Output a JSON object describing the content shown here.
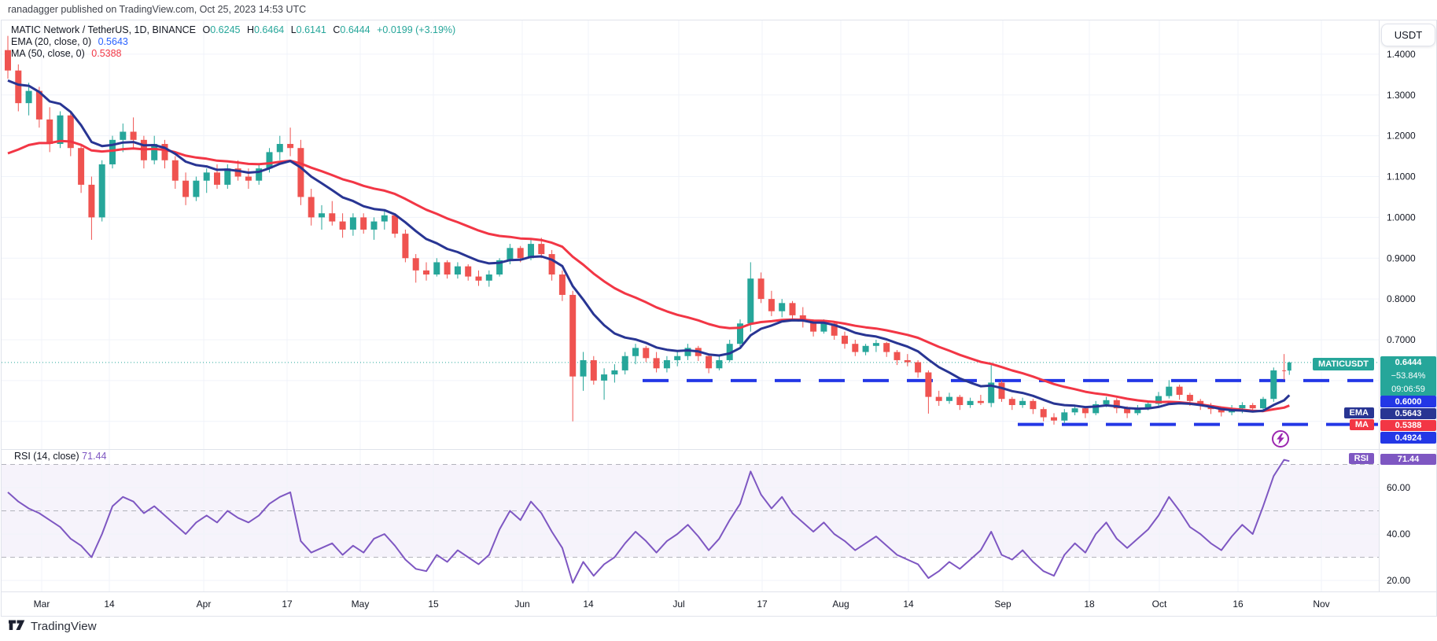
{
  "header": {
    "published": "ranadagger published on TradingView.com, Oct 25, 2023 14:53 UTC"
  },
  "footer": {
    "brand": "TradingView"
  },
  "price_axis": {
    "currency_button": "USDT"
  },
  "legend": {
    "title": "MATIC Network / TetherUS, 1D, BINANCE",
    "o_label": "O",
    "o_value": "0.6245",
    "h_label": "H",
    "h_value": "0.6464",
    "l_label": "L",
    "l_value": "0.6141",
    "c_label": "C",
    "c_value": "0.6444",
    "change": "+0.0199 (+3.19%)",
    "ema_title": "EMA (20, close, 0)",
    "ema_value": "0.5643",
    "ma_title": "MA (50, close, 0)",
    "ma_value": "0.5388"
  },
  "rsi_legend": {
    "title": "RSI (14, close)",
    "value": "71.44"
  },
  "tags": {
    "symbol": "MATICUSDT",
    "price": "0.6444",
    "change": "−53.84%",
    "countdown": "09:06:59",
    "upper_level": "0.6000",
    "ema_name": "EMA",
    "ema_value": "0.5643",
    "ma_name": "MA",
    "ma_value": "0.5388",
    "lower_level": "0.4924",
    "rsi_name": "RSI",
    "rsi_value": "71.44"
  },
  "colors": {
    "up": "#26a69a",
    "down": "#ef5350",
    "ema_line": "#283593",
    "ma_line": "#f23645",
    "level_blue": "#2337e6",
    "rsi_line": "#7e57c2",
    "grid": "#f0f3fa",
    "axis_border": "#e0e3eb",
    "axis_text": "#131722",
    "rsi_dash": "#787b86",
    "flash": "#9c27b0"
  },
  "chart_data": {
    "type": "candlestick",
    "symbol": "MATIC Network / TetherUS",
    "ticker": "MATICUSDT",
    "interval": "1D",
    "exchange": "BINANCE",
    "start_date": "2023-02-22",
    "candle_step_days": 2,
    "last_candle_date": "2023-10-25",
    "ohlc_today": {
      "o": 0.6245,
      "h": 0.6464,
      "l": 0.6141,
      "c": 0.6444,
      "change_abs": 0.0199,
      "change_pct": 3.19
    },
    "levels": {
      "current_price_line": 0.6444,
      "resistance": 0.6,
      "support": 0.4924
    },
    "price_ticks": [
      [
        1.4,
        "1.4000"
      ],
      [
        1.3,
        "1.3000"
      ],
      [
        1.2,
        "1.2000"
      ],
      [
        1.1,
        "1.1000"
      ],
      [
        1.0,
        "1.0000"
      ],
      [
        0.9,
        "0.9000"
      ],
      [
        0.8,
        "0.8000"
      ],
      [
        0.7,
        "0.7000"
      ]
    ],
    "price_gridlines": [
      1.4,
      1.3,
      1.2,
      1.1,
      1.0,
      0.9,
      0.8,
      0.7,
      0.6,
      0.5
    ],
    "rsi_ticks": [
      [
        60,
        "60.00"
      ],
      [
        40,
        "40.00"
      ],
      [
        20,
        "20.00"
      ]
    ],
    "rsi_levels": [
      70,
      50,
      30
    ],
    "rsi_band": [
      30,
      70
    ],
    "time_ticks": [
      [
        "Mar",
        51
      ],
      [
        "14",
        137
      ],
      [
        "Apr",
        257
      ],
      [
        "17",
        363
      ],
      [
        "May",
        456
      ],
      [
        "15",
        549
      ],
      [
        "Jun",
        662
      ],
      [
        "14",
        746
      ],
      [
        "Jul",
        861
      ],
      [
        "17",
        967
      ],
      [
        "Aug",
        1067
      ],
      [
        "14",
        1153
      ],
      [
        "Sep",
        1273
      ],
      [
        "18",
        1383
      ],
      [
        "Oct",
        1472
      ],
      [
        "16",
        1572
      ],
      [
        "Nov",
        1678
      ]
    ],
    "indicators": {
      "ema": {
        "label": "EMA (20, close, 0)",
        "period": 20,
        "last": 0.5643,
        "seed": 1.33
      },
      "ma": {
        "label": "MA (50, close, 0)",
        "period": 50,
        "last": 0.5388,
        "seed": 1.14
      },
      "rsi": {
        "label": "RSI (14, close)",
        "period": 14,
        "last": 71.44
      }
    },
    "candles": [
      [
        1.41,
        1.445,
        1.34,
        1.36
      ],
      [
        1.36,
        1.375,
        1.26,
        1.28
      ],
      [
        1.28,
        1.33,
        1.25,
        1.31
      ],
      [
        1.31,
        1.32,
        1.22,
        1.24
      ],
      [
        1.24,
        1.27,
        1.16,
        1.18
      ],
      [
        1.18,
        1.26,
        1.17,
        1.25
      ],
      [
        1.25,
        1.26,
        1.15,
        1.17
      ],
      [
        1.17,
        1.18,
        1.06,
        1.08
      ],
      [
        1.08,
        1.1,
        0.945,
        1.0
      ],
      [
        1.0,
        1.14,
        0.99,
        1.13
      ],
      [
        1.13,
        1.2,
        1.12,
        1.19
      ],
      [
        1.19,
        1.23,
        1.16,
        1.21
      ],
      [
        1.21,
        1.245,
        1.17,
        1.19
      ],
      [
        1.19,
        1.2,
        1.12,
        1.14
      ],
      [
        1.14,
        1.2,
        1.13,
        1.18
      ],
      [
        1.18,
        1.19,
        1.12,
        1.14
      ],
      [
        1.14,
        1.15,
        1.07,
        1.09
      ],
      [
        1.09,
        1.11,
        1.03,
        1.05
      ],
      [
        1.05,
        1.1,
        1.04,
        1.09
      ],
      [
        1.09,
        1.12,
        1.06,
        1.11
      ],
      [
        1.11,
        1.13,
        1.07,
        1.08
      ],
      [
        1.08,
        1.13,
        1.07,
        1.12
      ],
      [
        1.12,
        1.14,
        1.09,
        1.1
      ],
      [
        1.1,
        1.12,
        1.07,
        1.09
      ],
      [
        1.09,
        1.13,
        1.08,
        1.12
      ],
      [
        1.12,
        1.17,
        1.11,
        1.16
      ],
      [
        1.16,
        1.2,
        1.14,
        1.18
      ],
      [
        1.18,
        1.22,
        1.15,
        1.17
      ],
      [
        1.17,
        1.19,
        1.03,
        1.05
      ],
      [
        1.05,
        1.07,
        0.98,
        1.0
      ],
      [
        1.0,
        1.03,
        0.97,
        1.01
      ],
      [
        1.01,
        1.04,
        0.98,
        0.99
      ],
      [
        0.99,
        1.01,
        0.95,
        0.97
      ],
      [
        0.97,
        1.01,
        0.955,
        1.0
      ],
      [
        1.0,
        1.01,
        0.96,
        0.97
      ],
      [
        0.97,
        1.0,
        0.945,
        0.99
      ],
      [
        0.99,
        1.02,
        0.97,
        1.005
      ],
      [
        1.005,
        1.01,
        0.95,
        0.96
      ],
      [
        0.96,
        0.97,
        0.89,
        0.9
      ],
      [
        0.9,
        0.91,
        0.84,
        0.87
      ],
      [
        0.87,
        0.89,
        0.845,
        0.86
      ],
      [
        0.86,
        0.9,
        0.855,
        0.89
      ],
      [
        0.89,
        0.895,
        0.85,
        0.86
      ],
      [
        0.86,
        0.89,
        0.85,
        0.88
      ],
      [
        0.88,
        0.885,
        0.845,
        0.855
      ],
      [
        0.855,
        0.87,
        0.832,
        0.845
      ],
      [
        0.845,
        0.87,
        0.83,
        0.86
      ],
      [
        0.86,
        0.9,
        0.855,
        0.895
      ],
      [
        0.895,
        0.935,
        0.885,
        0.925
      ],
      [
        0.925,
        0.93,
        0.89,
        0.9
      ],
      [
        0.9,
        0.945,
        0.895,
        0.935
      ],
      [
        0.935,
        0.95,
        0.9,
        0.91
      ],
      [
        0.91,
        0.92,
        0.845,
        0.86
      ],
      [
        0.86,
        0.87,
        0.795,
        0.81
      ],
      [
        0.81,
        0.82,
        0.5,
        0.61
      ],
      [
        0.61,
        0.67,
        0.575,
        0.65
      ],
      [
        0.65,
        0.66,
        0.59,
        0.6
      ],
      [
        0.6,
        0.63,
        0.553,
        0.615
      ],
      [
        0.615,
        0.64,
        0.595,
        0.625
      ],
      [
        0.625,
        0.67,
        0.615,
        0.66
      ],
      [
        0.66,
        0.69,
        0.64,
        0.68
      ],
      [
        0.68,
        0.685,
        0.645,
        0.655
      ],
      [
        0.655,
        0.67,
        0.62,
        0.63
      ],
      [
        0.63,
        0.66,
        0.62,
        0.65
      ],
      [
        0.65,
        0.67,
        0.635,
        0.66
      ],
      [
        0.66,
        0.69,
        0.65,
        0.68
      ],
      [
        0.68,
        0.685,
        0.648,
        0.66
      ],
      [
        0.66,
        0.665,
        0.618,
        0.63
      ],
      [
        0.63,
        0.66,
        0.625,
        0.65
      ],
      [
        0.65,
        0.7,
        0.645,
        0.69
      ],
      [
        0.69,
        0.75,
        0.68,
        0.74
      ],
      [
        0.74,
        0.89,
        0.72,
        0.85
      ],
      [
        0.85,
        0.865,
        0.79,
        0.8
      ],
      [
        0.8,
        0.82,
        0.758,
        0.77
      ],
      [
        0.77,
        0.8,
        0.755,
        0.79
      ],
      [
        0.79,
        0.795,
        0.748,
        0.76
      ],
      [
        0.76,
        0.78,
        0.73,
        0.745
      ],
      [
        0.745,
        0.75,
        0.708,
        0.72
      ],
      [
        0.72,
        0.75,
        0.715,
        0.74
      ],
      [
        0.74,
        0.745,
        0.7,
        0.71
      ],
      [
        0.71,
        0.72,
        0.678,
        0.69
      ],
      [
        0.69,
        0.7,
        0.66,
        0.67
      ],
      [
        0.67,
        0.69,
        0.662,
        0.685
      ],
      [
        0.685,
        0.7,
        0.67,
        0.692
      ],
      [
        0.692,
        0.695,
        0.658,
        0.67
      ],
      [
        0.67,
        0.675,
        0.638,
        0.65
      ],
      [
        0.65,
        0.665,
        0.635,
        0.645
      ],
      [
        0.645,
        0.65,
        0.607,
        0.62
      ],
      [
        0.62,
        0.625,
        0.519,
        0.56
      ],
      [
        0.56,
        0.575,
        0.538,
        0.55
      ],
      [
        0.55,
        0.57,
        0.543,
        0.56
      ],
      [
        0.56,
        0.565,
        0.528,
        0.54
      ],
      [
        0.54,
        0.558,
        0.533,
        0.55
      ],
      [
        0.55,
        0.565,
        0.54,
        0.545
      ],
      [
        0.545,
        0.638,
        0.535,
        0.595
      ],
      [
        0.595,
        0.6,
        0.548,
        0.555
      ],
      [
        0.555,
        0.56,
        0.528,
        0.54
      ],
      [
        0.54,
        0.558,
        0.533,
        0.55
      ],
      [
        0.55,
        0.555,
        0.518,
        0.53
      ],
      [
        0.53,
        0.535,
        0.5,
        0.51
      ],
      [
        0.51,
        0.52,
        0.492,
        0.502
      ],
      [
        0.502,
        0.53,
        0.495,
        0.522
      ],
      [
        0.522,
        0.54,
        0.515,
        0.532
      ],
      [
        0.532,
        0.537,
        0.508,
        0.52
      ],
      [
        0.52,
        0.55,
        0.515,
        0.542
      ],
      [
        0.542,
        0.56,
        0.535,
        0.552
      ],
      [
        0.552,
        0.557,
        0.52,
        0.532
      ],
      [
        0.532,
        0.537,
        0.508,
        0.52
      ],
      [
        0.52,
        0.54,
        0.515,
        0.532
      ],
      [
        0.532,
        0.55,
        0.527,
        0.543
      ],
      [
        0.543,
        0.572,
        0.538,
        0.562
      ],
      [
        0.562,
        0.601,
        0.556,
        0.585
      ],
      [
        0.585,
        0.59,
        0.553,
        0.565
      ],
      [
        0.565,
        0.57,
        0.538,
        0.55
      ],
      [
        0.55,
        0.555,
        0.528,
        0.54
      ],
      [
        0.54,
        0.545,
        0.518,
        0.53
      ],
      [
        0.53,
        0.535,
        0.512,
        0.522
      ],
      [
        0.522,
        0.54,
        0.515,
        0.532
      ],
      [
        0.532,
        0.547,
        0.52,
        0.54
      ],
      [
        0.54,
        0.545,
        0.523,
        0.532
      ],
      [
        0.532,
        0.56,
        0.525,
        0.555
      ],
      [
        0.555,
        0.632,
        0.548,
        0.625
      ],
      [
        0.625,
        0.665,
        0.602,
        0.6245
      ],
      [
        0.6245,
        0.6464,
        0.6141,
        0.6444
      ]
    ],
    "rsi": [
      58,
      54,
      51,
      49,
      46,
      43,
      38,
      35,
      30,
      40,
      52,
      56,
      54,
      49,
      52,
      48,
      44,
      40,
      45,
      48,
      45,
      50,
      47,
      45,
      48,
      53,
      56,
      58,
      37,
      32,
      34,
      36,
      31,
      35,
      32,
      38,
      40,
      35,
      29,
      25,
      24,
      31,
      28,
      33,
      30,
      27,
      31,
      42,
      50,
      46,
      54,
      49,
      41,
      34,
      19,
      28,
      22,
      27,
      30,
      36,
      41,
      37,
      32,
      37,
      40,
      44,
      39,
      33,
      38,
      46,
      53,
      67,
      57,
      51,
      56,
      49,
      45,
      41,
      45,
      40,
      37,
      33,
      36,
      39,
      35,
      31,
      29,
      27,
      21,
      24,
      28,
      25,
      29,
      33,
      41,
      31,
      29,
      33,
      28,
      24,
      22,
      31,
      36,
      32,
      40,
      45,
      38,
      34,
      38,
      42,
      48,
      56,
      50,
      43,
      40,
      36,
      33,
      39,
      44,
      40,
      52,
      65,
      72,
      71.44
    ]
  }
}
